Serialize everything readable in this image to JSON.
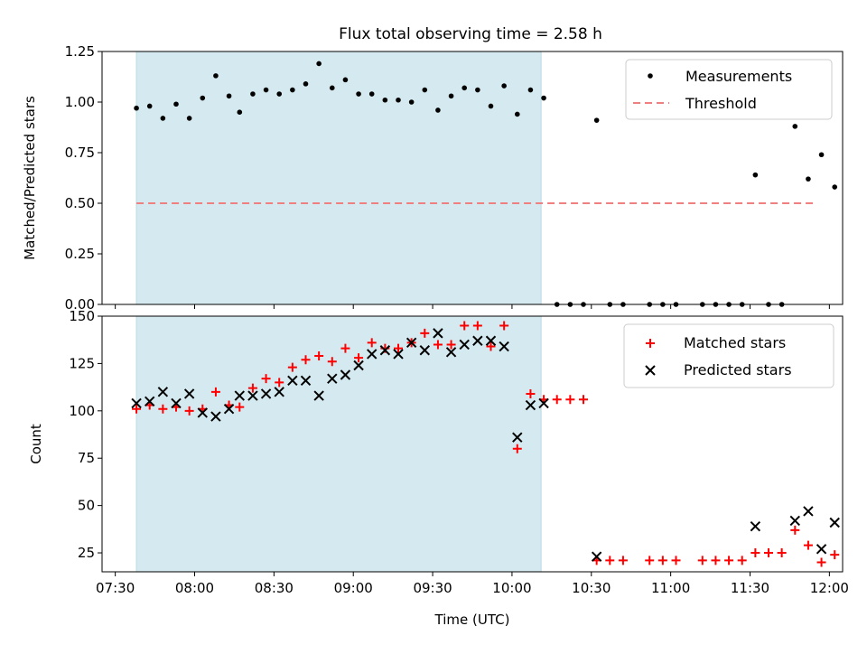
{
  "title": "Flux total observing time = 2.58 h",
  "chart_data": [
    {
      "type": "scatter",
      "ylabel": "Matched/Predicted stars",
      "ylim": [
        0,
        1.25
      ],
      "yticks": [
        "0.00",
        "0.25",
        "0.50",
        "0.75",
        "1.00",
        "1.25"
      ],
      "xlim": [
        "07:25",
        "12:05"
      ],
      "highlight_span": {
        "start": "07:38",
        "end": "10:11",
        "color": "#d4eaf0"
      },
      "legend": {
        "position": "top-right",
        "entries": [
          {
            "label": "Measurements",
            "color": "#000000"
          },
          {
            "label": "Threshold",
            "color": "#f08080"
          }
        ]
      },
      "threshold": {
        "value": 0.5,
        "x_start": "07:38",
        "x_end": "11:55",
        "color": "#f08080"
      },
      "measurements": [
        [
          "07:38",
          0.97
        ],
        [
          "07:43",
          0.98
        ],
        [
          "07:48",
          0.92
        ],
        [
          "07:53",
          0.99
        ],
        [
          "07:58",
          0.92
        ],
        [
          "08:03",
          1.02
        ],
        [
          "08:08",
          1.13
        ],
        [
          "08:13",
          1.03
        ],
        [
          "08:17",
          0.95
        ],
        [
          "08:22",
          1.04
        ],
        [
          "08:27",
          1.06
        ],
        [
          "08:32",
          1.04
        ],
        [
          "08:37",
          1.06
        ],
        [
          "08:42",
          1.09
        ],
        [
          "08:47",
          1.19
        ],
        [
          "08:52",
          1.07
        ],
        [
          "08:57",
          1.11
        ],
        [
          "09:02",
          1.04
        ],
        [
          "09:07",
          1.04
        ],
        [
          "09:12",
          1.01
        ],
        [
          "09:17",
          1.01
        ],
        [
          "09:22",
          1.0
        ],
        [
          "09:27",
          1.06
        ],
        [
          "09:32",
          0.96
        ],
        [
          "09:37",
          1.03
        ],
        [
          "09:42",
          1.07
        ],
        [
          "09:47",
          1.06
        ],
        [
          "09:52",
          0.98
        ],
        [
          "09:57",
          1.08
        ],
        [
          "10:02",
          0.94
        ],
        [
          "10:07",
          1.06
        ],
        [
          "10:12",
          1.02
        ],
        [
          "10:17",
          0.0
        ],
        [
          "10:22",
          0.0
        ],
        [
          "10:27",
          0.0
        ],
        [
          "10:32",
          0.91
        ],
        [
          "10:37",
          0.0
        ],
        [
          "10:42",
          0.0
        ],
        [
          "10:52",
          0.0
        ],
        [
          "10:57",
          0.0
        ],
        [
          "11:02",
          0.0
        ],
        [
          "11:12",
          0.0
        ],
        [
          "11:17",
          0.0
        ],
        [
          "11:22",
          0.0
        ],
        [
          "11:27",
          0.0
        ],
        [
          "11:32",
          0.64
        ],
        [
          "11:37",
          0.0
        ],
        [
          "11:42",
          0.0
        ],
        [
          "11:47",
          0.88
        ],
        [
          "11:52",
          0.62
        ],
        [
          "11:57",
          0.74
        ],
        [
          "12:02",
          0.58
        ]
      ]
    },
    {
      "type": "scatter",
      "ylabel": "Count",
      "xlabel": "Time (UTC)",
      "ylim": [
        15,
        150
      ],
      "yticks": [
        "25",
        "50",
        "75",
        "100",
        "125",
        "150"
      ],
      "xticks": [
        "07:30",
        "08:00",
        "08:30",
        "09:00",
        "09:30",
        "10:00",
        "10:30",
        "11:00",
        "11:30",
        "12:00"
      ],
      "xlim": [
        "07:25",
        "12:05"
      ],
      "highlight_span": {
        "start": "07:38",
        "end": "10:11",
        "color": "#d4eaf0"
      },
      "legend": {
        "position": "top-right",
        "entries": [
          {
            "label": "Matched stars",
            "color": "#ff0000"
          },
          {
            "label": "Predicted stars",
            "color": "#000000"
          }
        ]
      },
      "series": [
        {
          "name": "Matched stars",
          "color": "#ff0000",
          "marker": "plus",
          "points": [
            [
              "07:38",
              101
            ],
            [
              "07:43",
              103
            ],
            [
              "07:48",
              101
            ],
            [
              "07:53",
              102
            ],
            [
              "07:58",
              100
            ],
            [
              "08:03",
              101
            ],
            [
              "08:08",
              110
            ],
            [
              "08:13",
              103
            ],
            [
              "08:17",
              102
            ],
            [
              "08:22",
              112
            ],
            [
              "08:27",
              117
            ],
            [
              "08:32",
              115
            ],
            [
              "08:37",
              123
            ],
            [
              "08:42",
              127
            ],
            [
              "08:47",
              129
            ],
            [
              "08:52",
              126
            ],
            [
              "08:57",
              133
            ],
            [
              "09:02",
              128
            ],
            [
              "09:07",
              136
            ],
            [
              "09:12",
              133
            ],
            [
              "09:17",
              133
            ],
            [
              "09:22",
              136
            ],
            [
              "09:27",
              141
            ],
            [
              "09:32",
              135
            ],
            [
              "09:37",
              135
            ],
            [
              "09:42",
              145
            ],
            [
              "09:47",
              145
            ],
            [
              "09:52",
              134
            ],
            [
              "09:57",
              145
            ],
            [
              "10:02",
              80
            ],
            [
              "10:07",
              109
            ],
            [
              "10:12",
              106
            ],
            [
              "10:17",
              106
            ],
            [
              "10:22",
              106
            ],
            [
              "10:27",
              106
            ],
            [
              "10:32",
              21
            ],
            [
              "10:37",
              21
            ],
            [
              "10:42",
              21
            ],
            [
              "10:52",
              21
            ],
            [
              "10:57",
              21
            ],
            [
              "11:02",
              21
            ],
            [
              "11:12",
              21
            ],
            [
              "11:17",
              21
            ],
            [
              "11:22",
              21
            ],
            [
              "11:27",
              21
            ],
            [
              "11:32",
              25
            ],
            [
              "11:37",
              25
            ],
            [
              "11:42",
              25
            ],
            [
              "11:47",
              37
            ],
            [
              "11:52",
              29
            ],
            [
              "11:57",
              20
            ],
            [
              "12:02",
              24
            ]
          ]
        },
        {
          "name": "Predicted stars",
          "color": "#000000",
          "marker": "x",
          "points": [
            [
              "07:38",
              104
            ],
            [
              "07:43",
              105
            ],
            [
              "07:48",
              110
            ],
            [
              "07:53",
              104
            ],
            [
              "07:58",
              109
            ],
            [
              "08:03",
              99
            ],
            [
              "08:08",
              97
            ],
            [
              "08:13",
              101
            ],
            [
              "08:17",
              108
            ],
            [
              "08:22",
              108
            ],
            [
              "08:27",
              109
            ],
            [
              "08:32",
              110
            ],
            [
              "08:37",
              116
            ],
            [
              "08:42",
              116
            ],
            [
              "08:47",
              108
            ],
            [
              "08:52",
              117
            ],
            [
              "08:57",
              119
            ],
            [
              "09:02",
              124
            ],
            [
              "09:07",
              130
            ],
            [
              "09:12",
              132
            ],
            [
              "09:17",
              130
            ],
            [
              "09:22",
              136
            ],
            [
              "09:27",
              132
            ],
            [
              "09:32",
              141
            ],
            [
              "09:37",
              131
            ],
            [
              "09:42",
              135
            ],
            [
              "09:47",
              137
            ],
            [
              "09:52",
              137
            ],
            [
              "09:57",
              134
            ],
            [
              "10:02",
              86
            ],
            [
              "10:07",
              103
            ],
            [
              "10:12",
              104
            ],
            [
              "10:32",
              23
            ],
            [
              "11:32",
              39
            ],
            [
              "11:47",
              42
            ],
            [
              "11:52",
              47
            ],
            [
              "11:57",
              27
            ],
            [
              "12:02",
              41
            ]
          ]
        }
      ]
    }
  ]
}
